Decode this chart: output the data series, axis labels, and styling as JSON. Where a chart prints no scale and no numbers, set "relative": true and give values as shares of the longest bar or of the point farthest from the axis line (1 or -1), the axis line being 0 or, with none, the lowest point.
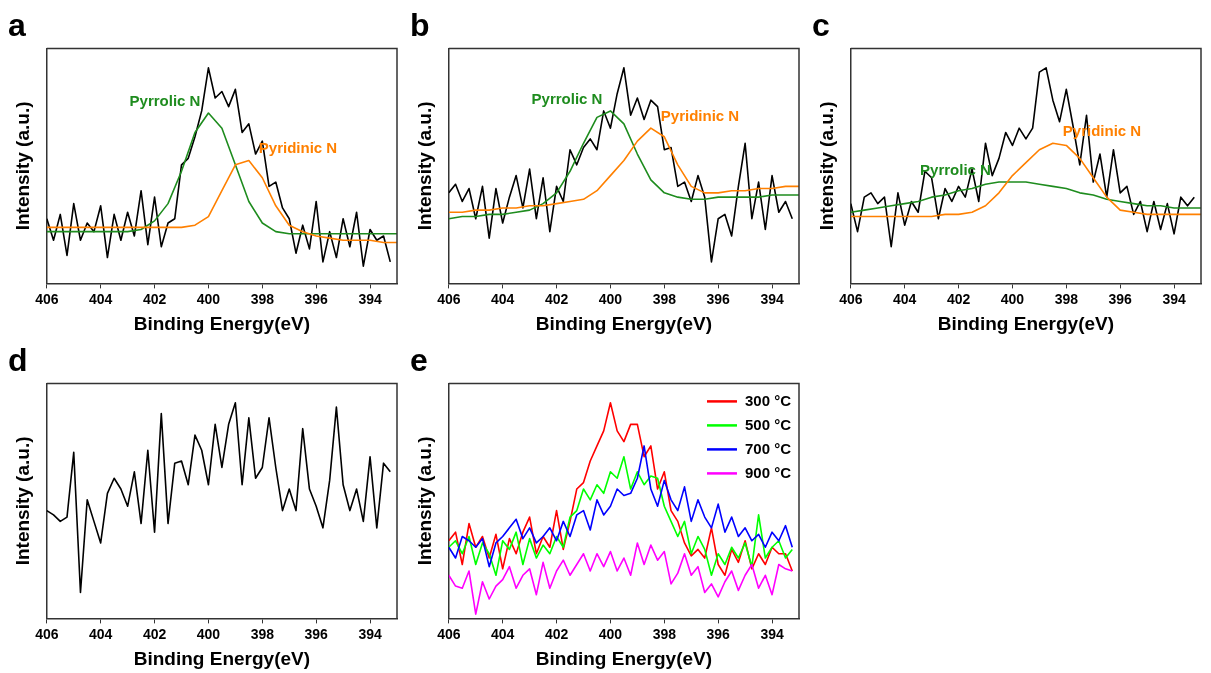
{
  "chart_data": [
    {
      "type": "line",
      "title": "a",
      "xlabel": "Binding Energy(eV)",
      "ylabel": "Intensity (a.u.)",
      "relative": true,
      "marker": "none",
      "legend": false,
      "xlim": [
        406,
        393
      ],
      "xticks": [
        406,
        404,
        402,
        400,
        398,
        396,
        394
      ],
      "x": [
        406,
        405.75,
        405.5,
        405.25,
        405,
        404.75,
        404.5,
        404.25,
        404,
        403.75,
        403.5,
        403.25,
        403,
        402.75,
        402.5,
        402.25,
        402,
        401.75,
        401.5,
        401.25,
        401,
        400.75,
        400.5,
        400.25,
        400,
        399.75,
        399.5,
        399.25,
        399,
        398.75,
        398.5,
        398.25,
        398,
        397.75,
        397.5,
        397.25,
        397,
        396.75,
        396.5,
        396.25,
        396,
        395.75,
        395.5,
        395.25,
        395,
        394.75,
        394.5,
        394.25,
        394,
        393.75,
        393.5,
        393.25
      ],
      "series": [
        {
          "color": "#000000",
          "values": [
            0.3,
            0.2,
            0.32,
            0.13,
            0.37,
            0.2,
            0.28,
            0.24,
            0.36,
            0.12,
            0.32,
            0.2,
            0.33,
            0.22,
            0.43,
            0.18,
            0.4,
            0.17,
            0.28,
            0.3,
            0.55,
            0.58,
            0.68,
            0.8,
            1.0,
            0.86,
            0.89,
            0.82,
            0.9,
            0.7,
            0.74,
            0.6,
            0.66,
            0.45,
            0.47,
            0.35,
            0.3,
            0.14,
            0.27,
            0.16,
            0.38,
            0.1,
            0.24,
            0.12,
            0.3,
            0.17,
            0.33,
            0.08,
            0.25,
            0.2,
            0.22,
            0.1
          ]
        },
        {
          "name": "Pyrrolic N",
          "color": "#1e8c1e",
          "x": [
            406,
            405.5,
            405,
            404.5,
            404,
            403.5,
            403,
            402.5,
            402,
            401.5,
            401,
            400.5,
            400,
            399.5,
            399,
            398.5,
            398,
            397.5,
            397,
            396.5,
            396,
            395.5,
            395,
            394.5,
            394,
            393.5,
            393
          ],
          "values": [
            0.24,
            0.24,
            0.24,
            0.24,
            0.24,
            0.24,
            0.24,
            0.25,
            0.29,
            0.37,
            0.52,
            0.7,
            0.79,
            0.72,
            0.55,
            0.38,
            0.28,
            0.24,
            0.23,
            0.23,
            0.23,
            0.23,
            0.23,
            0.23,
            0.23,
            0.23,
            0.23
          ]
        },
        {
          "name": "Pyridinic N",
          "color": "#ff8000",
          "x": [
            406,
            405.5,
            405,
            404.5,
            404,
            403.5,
            403,
            402.5,
            402,
            401.5,
            401,
            400.5,
            400,
            399.5,
            399,
            398.5,
            398,
            397.5,
            397,
            396.5,
            396,
            395.5,
            395,
            394.5,
            394,
            393.5,
            393
          ],
          "values": [
            0.26,
            0.26,
            0.26,
            0.26,
            0.26,
            0.26,
            0.26,
            0.26,
            0.26,
            0.26,
            0.26,
            0.27,
            0.31,
            0.43,
            0.55,
            0.57,
            0.49,
            0.36,
            0.27,
            0.24,
            0.22,
            0.21,
            0.2,
            0.2,
            0.2,
            0.19,
            0.19
          ]
        }
      ]
    },
    {
      "type": "line",
      "title": "b",
      "xlabel": "Binding Energy(eV)",
      "ylabel": "Intensity (a.u.)",
      "relative": true,
      "marker": "none",
      "legend": false,
      "xlim": [
        406,
        393
      ],
      "xticks": [
        406,
        404,
        402,
        400,
        398,
        396,
        394
      ],
      "x": [
        406,
        405.75,
        405.5,
        405.25,
        405,
        404.75,
        404.5,
        404.25,
        404,
        403.75,
        403.5,
        403.25,
        403,
        402.75,
        402.5,
        402.25,
        402,
        401.75,
        401.5,
        401.25,
        401,
        400.75,
        400.5,
        400.25,
        400,
        399.75,
        399.5,
        399.25,
        399,
        398.75,
        398.5,
        398.25,
        398,
        397.75,
        397.5,
        397.25,
        397,
        396.75,
        396.5,
        396.25,
        396,
        395.75,
        395.5,
        395.25,
        395,
        394.75,
        394.5,
        394.25,
        394,
        393.75,
        393.5,
        393.25
      ],
      "series": [
        {
          "color": "#000000",
          "values": [
            0.42,
            0.46,
            0.38,
            0.44,
            0.3,
            0.45,
            0.21,
            0.44,
            0.28,
            0.4,
            0.5,
            0.35,
            0.53,
            0.3,
            0.49,
            0.24,
            0.45,
            0.38,
            0.62,
            0.55,
            0.63,
            0.67,
            0.62,
            0.8,
            0.72,
            0.88,
            1.0,
            0.78,
            0.86,
            0.76,
            0.85,
            0.82,
            0.62,
            0.63,
            0.45,
            0.47,
            0.38,
            0.5,
            0.4,
            0.1,
            0.3,
            0.32,
            0.22,
            0.45,
            0.65,
            0.3,
            0.47,
            0.25,
            0.5,
            0.33,
            0.38,
            0.3
          ]
        },
        {
          "name": "Pyrrolic N",
          "color": "#1e8c1e",
          "x": [
            406,
            405.5,
            405,
            404.5,
            404,
            403.5,
            403,
            402.5,
            402,
            401.5,
            401,
            400.5,
            400,
            399.5,
            399,
            398.5,
            398,
            397.5,
            397,
            396.5,
            396,
            395.5,
            395,
            394.5,
            394,
            393.5,
            393
          ],
          "values": [
            0.3,
            0.31,
            0.31,
            0.32,
            0.32,
            0.33,
            0.34,
            0.37,
            0.42,
            0.52,
            0.65,
            0.77,
            0.8,
            0.74,
            0.6,
            0.48,
            0.42,
            0.4,
            0.39,
            0.39,
            0.4,
            0.4,
            0.4,
            0.4,
            0.41,
            0.41,
            0.41
          ]
        },
        {
          "name": "Pyridinic N",
          "color": "#ff8000",
          "x": [
            406,
            405.5,
            405,
            404.5,
            404,
            403.5,
            403,
            402.5,
            402,
            401.5,
            401,
            400.5,
            400,
            399.5,
            399,
            398.5,
            398,
            397.5,
            397,
            396.5,
            396,
            395.5,
            395,
            394.5,
            394,
            393.5,
            393
          ],
          "values": [
            0.33,
            0.33,
            0.34,
            0.34,
            0.35,
            0.35,
            0.36,
            0.36,
            0.37,
            0.38,
            0.39,
            0.43,
            0.5,
            0.57,
            0.66,
            0.72,
            0.68,
            0.55,
            0.45,
            0.42,
            0.42,
            0.43,
            0.43,
            0.44,
            0.44,
            0.45,
            0.45
          ]
        }
      ]
    },
    {
      "type": "line",
      "title": "c",
      "xlabel": "Binding Energy(eV)",
      "ylabel": "Intensity (a.u.)",
      "relative": true,
      "marker": "none",
      "legend": false,
      "xlim": [
        406,
        393
      ],
      "xticks": [
        406,
        404,
        402,
        400,
        398,
        396,
        394
      ],
      "x": [
        406,
        405.75,
        405.5,
        405.25,
        405,
        404.75,
        404.5,
        404.25,
        404,
        403.75,
        403.5,
        403.25,
        403,
        402.75,
        402.5,
        402.25,
        402,
        401.75,
        401.5,
        401.25,
        401,
        400.75,
        400.5,
        400.25,
        400,
        399.75,
        399.5,
        399.25,
        399,
        398.75,
        398.5,
        398.25,
        398,
        397.75,
        397.5,
        397.25,
        397,
        396.75,
        396.5,
        396.25,
        396,
        395.75,
        395.5,
        395.25,
        395,
        394.75,
        394.5,
        394.25,
        394,
        393.75,
        393.5,
        393.25
      ],
      "series": [
        {
          "color": "#000000",
          "values": [
            0.37,
            0.24,
            0.4,
            0.42,
            0.37,
            0.4,
            0.17,
            0.42,
            0.27,
            0.38,
            0.33,
            0.52,
            0.49,
            0.3,
            0.44,
            0.38,
            0.45,
            0.4,
            0.53,
            0.38,
            0.65,
            0.5,
            0.58,
            0.7,
            0.64,
            0.72,
            0.67,
            0.72,
            0.98,
            1.0,
            0.85,
            0.75,
            0.9,
            0.73,
            0.55,
            0.78,
            0.47,
            0.6,
            0.4,
            0.62,
            0.42,
            0.45,
            0.32,
            0.38,
            0.24,
            0.38,
            0.25,
            0.37,
            0.23,
            0.4,
            0.36,
            0.4
          ]
        },
        {
          "name": "Pyrrolic N",
          "color": "#1e8c1e",
          "x": [
            406,
            405.5,
            405,
            404.5,
            404,
            403.5,
            403,
            402.5,
            402,
            401.5,
            401,
            400.5,
            400,
            399.5,
            399,
            398.5,
            398,
            397.5,
            397,
            396.5,
            396,
            395.5,
            395,
            394.5,
            394,
            393.5,
            393
          ],
          "values": [
            0.33,
            0.34,
            0.35,
            0.36,
            0.37,
            0.38,
            0.4,
            0.41,
            0.43,
            0.44,
            0.46,
            0.47,
            0.47,
            0.47,
            0.46,
            0.45,
            0.44,
            0.42,
            0.41,
            0.39,
            0.38,
            0.37,
            0.36,
            0.36,
            0.35,
            0.35,
            0.35
          ]
        },
        {
          "name": "Pyridinic N",
          "color": "#ff8000",
          "x": [
            406,
            405.5,
            405,
            404.5,
            404,
            403.5,
            403,
            402.5,
            402,
            401.5,
            401,
            400.5,
            400,
            399.5,
            399,
            398.5,
            398,
            397.5,
            397,
            396.5,
            396,
            395.5,
            395,
            394.5,
            394,
            393.5,
            393
          ],
          "values": [
            0.31,
            0.31,
            0.31,
            0.31,
            0.31,
            0.31,
            0.31,
            0.32,
            0.32,
            0.33,
            0.36,
            0.42,
            0.5,
            0.56,
            0.62,
            0.65,
            0.64,
            0.58,
            0.49,
            0.4,
            0.34,
            0.33,
            0.32,
            0.32,
            0.32,
            0.32,
            0.32
          ]
        }
      ]
    },
    {
      "type": "line",
      "title": "d",
      "xlabel": "Binding Energy(eV)",
      "ylabel": "Intensity (a.u.)",
      "relative": true,
      "marker": "none",
      "legend": false,
      "xlim": [
        406,
        393
      ],
      "xticks": [
        406,
        404,
        402,
        400,
        398,
        396,
        394
      ],
      "x": [
        406,
        405.75,
        405.5,
        405.25,
        405,
        404.75,
        404.5,
        404.25,
        404,
        403.75,
        403.5,
        403.25,
        403,
        402.75,
        402.5,
        402.25,
        402,
        401.75,
        401.5,
        401.25,
        401,
        400.75,
        400.5,
        400.25,
        400,
        399.75,
        399.5,
        399.25,
        399,
        398.75,
        398.5,
        398.25,
        398,
        397.75,
        397.5,
        397.25,
        397,
        396.75,
        396.5,
        396.25,
        396,
        395.75,
        395.5,
        395.25,
        395,
        394.75,
        394.5,
        394.25,
        394,
        393.75,
        393.5,
        393.25
      ],
      "series": [
        {
          "color": "#000000",
          "values": [
            0.5,
            0.48,
            0.45,
            0.47,
            0.77,
            0.12,
            0.55,
            0.45,
            0.35,
            0.58,
            0.65,
            0.6,
            0.52,
            0.68,
            0.44,
            0.78,
            0.4,
            0.95,
            0.44,
            0.72,
            0.73,
            0.62,
            0.85,
            0.78,
            0.62,
            0.9,
            0.7,
            0.9,
            1.0,
            0.62,
            0.93,
            0.65,
            0.7,
            0.93,
            0.7,
            0.5,
            0.6,
            0.5,
            0.88,
            0.6,
            0.52,
            0.42,
            0.64,
            0.98,
            0.62,
            0.5,
            0.6,
            0.45,
            0.75,
            0.42,
            0.72,
            0.68
          ]
        }
      ]
    },
    {
      "type": "line",
      "title": "e",
      "xlabel": "Binding Energy(eV)",
      "ylabel": "Intensity (a.u.)",
      "relative": true,
      "marker": "none",
      "legend": "top right",
      "xlim": [
        406,
        393
      ],
      "xticks": [
        406,
        404,
        402,
        400,
        398,
        396,
        394
      ],
      "x": [
        406,
        405.75,
        405.5,
        405.25,
        405,
        404.75,
        404.5,
        404.25,
        404,
        403.75,
        403.5,
        403.25,
        403,
        402.75,
        402.5,
        402.25,
        402,
        401.75,
        401.5,
        401.25,
        401,
        400.75,
        400.5,
        400.25,
        400,
        399.75,
        399.5,
        399.25,
        399,
        398.75,
        398.5,
        398.25,
        398,
        397.75,
        397.5,
        397.25,
        397,
        396.75,
        396.5,
        396.25,
        396,
        395.75,
        395.5,
        395.25,
        395,
        394.75,
        394.5,
        394.25,
        394,
        393.75,
        393.5,
        393.25
      ],
      "series": [
        {
          "name": "300 °C",
          "color": "#ff0000",
          "values": [
            0.36,
            0.4,
            0.25,
            0.44,
            0.33,
            0.38,
            0.28,
            0.39,
            0.23,
            0.37,
            0.3,
            0.4,
            0.47,
            0.3,
            0.38,
            0.33,
            0.5,
            0.32,
            0.45,
            0.6,
            0.63,
            0.73,
            0.8,
            0.87,
            1.0,
            0.87,
            0.82,
            0.9,
            0.9,
            0.75,
            0.8,
            0.6,
            0.68,
            0.5,
            0.45,
            0.35,
            0.29,
            0.32,
            0.28,
            0.42,
            0.25,
            0.2,
            0.32,
            0.26,
            0.36,
            0.23,
            0.3,
            0.25,
            0.33,
            0.3,
            0.3,
            0.22
          ]
        },
        {
          "name": "500 °C",
          "color": "#00ff00",
          "values": [
            0.33,
            0.36,
            0.3,
            0.38,
            0.25,
            0.35,
            0.3,
            0.2,
            0.36,
            0.32,
            0.4,
            0.25,
            0.37,
            0.28,
            0.34,
            0.3,
            0.38,
            0.33,
            0.47,
            0.5,
            0.6,
            0.55,
            0.62,
            0.58,
            0.68,
            0.65,
            0.75,
            0.6,
            0.68,
            0.62,
            0.66,
            0.65,
            0.52,
            0.45,
            0.38,
            0.45,
            0.3,
            0.38,
            0.32,
            0.2,
            0.3,
            0.25,
            0.33,
            0.28,
            0.35,
            0.24,
            0.48,
            0.28,
            0.33,
            0.36,
            0.28,
            0.32
          ]
        },
        {
          "name": "700 °C",
          "color": "#0000ff",
          "values": [
            0.33,
            0.28,
            0.38,
            0.36,
            0.33,
            0.37,
            0.24,
            0.35,
            0.38,
            0.42,
            0.46,
            0.37,
            0.42,
            0.35,
            0.38,
            0.42,
            0.36,
            0.45,
            0.38,
            0.48,
            0.5,
            0.41,
            0.55,
            0.48,
            0.52,
            0.6,
            0.57,
            0.58,
            0.65,
            0.8,
            0.6,
            0.52,
            0.64,
            0.55,
            0.5,
            0.61,
            0.45,
            0.55,
            0.47,
            0.42,
            0.53,
            0.4,
            0.47,
            0.38,
            0.42,
            0.36,
            0.39,
            0.33,
            0.4,
            0.36,
            0.43,
            0.33
          ]
        },
        {
          "name": "900 °C",
          "color": "#ff00ff",
          "values": [
            0.2,
            0.15,
            0.14,
            0.22,
            0.02,
            0.17,
            0.09,
            0.15,
            0.18,
            0.24,
            0.14,
            0.2,
            0.23,
            0.11,
            0.26,
            0.14,
            0.22,
            0.27,
            0.2,
            0.25,
            0.3,
            0.22,
            0.3,
            0.24,
            0.31,
            0.22,
            0.28,
            0.2,
            0.35,
            0.25,
            0.34,
            0.27,
            0.31,
            0.16,
            0.21,
            0.3,
            0.2,
            0.24,
            0.12,
            0.16,
            0.1,
            0.17,
            0.22,
            0.13,
            0.2,
            0.25,
            0.14,
            0.2,
            0.11,
            0.25,
            0.23,
            0.22
          ]
        }
      ]
    }
  ]
}
